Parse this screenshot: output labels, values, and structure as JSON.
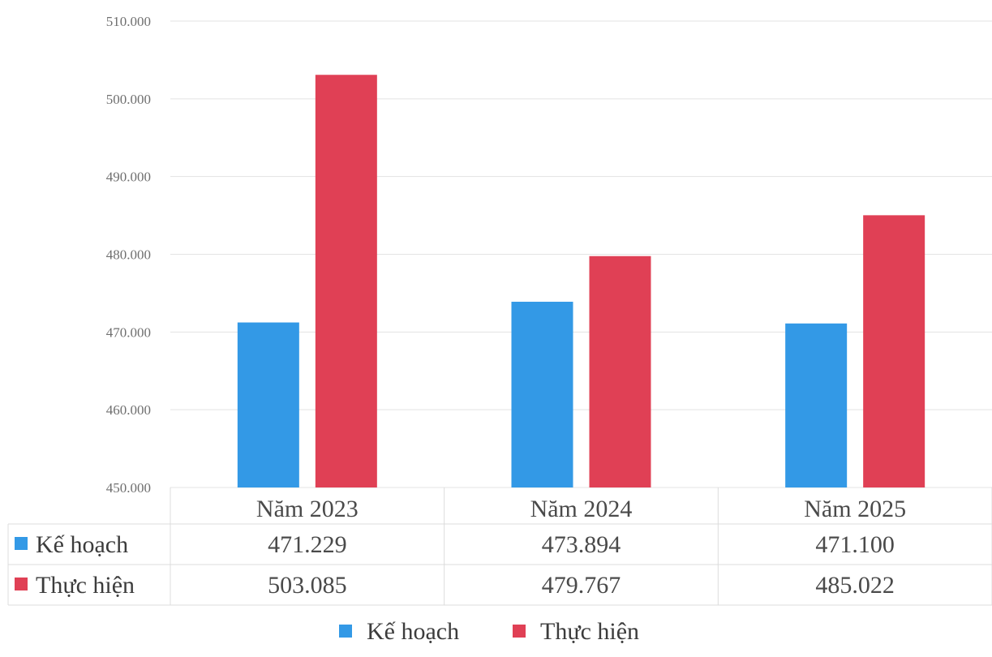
{
  "chart_data": {
    "type": "bar",
    "categories": [
      "Năm 2023",
      "Năm 2024",
      "Năm 2025"
    ],
    "series": [
      {
        "name": "Kế hoạch",
        "values": [
          471229,
          473894,
          471100
        ],
        "labels": [
          "471.229",
          "473.894",
          "471.100"
        ],
        "color": "#3399e6"
      },
      {
        "name": "Thực hiện",
        "values": [
          503085,
          479767,
          485022
        ],
        "labels": [
          "503.085",
          "479.767",
          "485.022"
        ],
        "color": "#e04055"
      }
    ],
    "ylim": [
      450000,
      510000
    ],
    "yticks": [
      450000,
      460000,
      470000,
      480000,
      490000,
      500000,
      510000
    ],
    "ytick_labels": [
      "450.000",
      "460.000",
      "470.000",
      "480.000",
      "490.000",
      "500.000",
      "510.000"
    ],
    "grid": true,
    "data_table": true,
    "legend": {
      "position": "bottom",
      "entries": [
        "Kế hoạch",
        "Thực hiện"
      ]
    }
  }
}
